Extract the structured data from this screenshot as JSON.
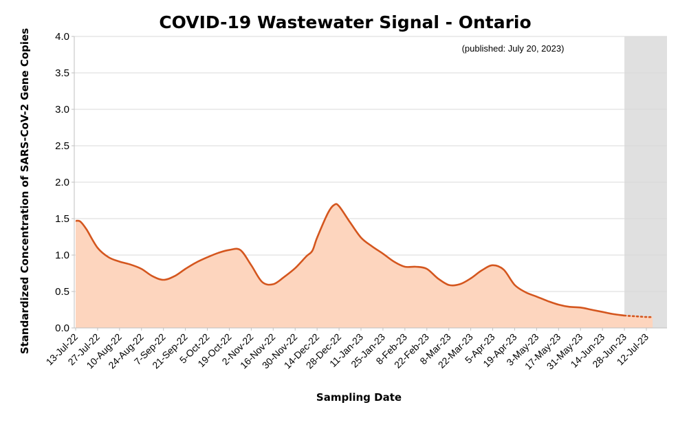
{
  "chart_data": {
    "type": "area",
    "title": "COVID-19 Wastewater Signal - Ontario",
    "annotation": "(published: July 20, 2023)",
    "xlabel": "Sampling Date",
    "ylabel": "Standardized Concentration of SARS-CoV-2 Gene Copies",
    "ylim": [
      0,
      4.0
    ],
    "yticks": [
      "0.0",
      "0.5",
      "1.0",
      "1.5",
      "2.0",
      "2.5",
      "3.0",
      "3.5",
      "4.0"
    ],
    "xtick_labels": [
      "13-Jul-22",
      "27-Jul-22",
      "10-Aug-22",
      "24-Aug-22",
      "7-Sep-22",
      "21-Sep-22",
      "5-Oct-22",
      "19-Oct-22",
      "2-Nov-22",
      "16-Nov-22",
      "30-Nov-22",
      "14-Dec-22",
      "28-Dec-22",
      "11-Jan-23",
      "25-Jan-23",
      "8-Feb-23",
      "22-Feb-23",
      "8-Mar-23",
      "22-Mar-23",
      "5-Apr-23",
      "19-Apr-23",
      "3-May-23",
      "17-May-23",
      "31-May-23",
      "14-Jun-23",
      "28-Jun-23",
      "12-Jul-23"
    ],
    "grid": true,
    "legend": "none",
    "shaded_region": {
      "from": "28-Jun-23",
      "to": "19-Jul-23",
      "color": "#e0e0e0"
    },
    "series": [
      {
        "color": "#d4561e",
        "fill": "#fdd5be",
        "points": [
          {
            "x": "13-Jul-22",
            "y": 1.47
          },
          {
            "x": "16-Jul-22",
            "y": 1.46
          },
          {
            "x": "20-Jul-22",
            "y": 1.35
          },
          {
            "x": "27-Jul-22",
            "y": 1.1
          },
          {
            "x": "3-Aug-22",
            "y": 0.97
          },
          {
            "x": "10-Aug-22",
            "y": 0.91
          },
          {
            "x": "17-Aug-22",
            "y": 0.87
          },
          {
            "x": "24-Aug-22",
            "y": 0.81
          },
          {
            "x": "31-Aug-22",
            "y": 0.71
          },
          {
            "x": "7-Sep-22",
            "y": 0.66
          },
          {
            "x": "14-Sep-22",
            "y": 0.71
          },
          {
            "x": "21-Sep-22",
            "y": 0.81
          },
          {
            "x": "28-Sep-22",
            "y": 0.9
          },
          {
            "x": "5-Oct-22",
            "y": 0.97
          },
          {
            "x": "12-Oct-22",
            "y": 1.03
          },
          {
            "x": "19-Oct-22",
            "y": 1.07
          },
          {
            "x": "26-Oct-22",
            "y": 1.07
          },
          {
            "x": "2-Nov-22",
            "y": 0.86
          },
          {
            "x": "9-Nov-22",
            "y": 0.63
          },
          {
            "x": "16-Nov-22",
            "y": 0.6
          },
          {
            "x": "23-Nov-22",
            "y": 0.7
          },
          {
            "x": "30-Nov-22",
            "y": 0.82
          },
          {
            "x": "7-Dec-22",
            "y": 0.98
          },
          {
            "x": "11-Dec-22",
            "y": 1.06
          },
          {
            "x": "14-Dec-22",
            "y": 1.24
          },
          {
            "x": "21-Dec-22",
            "y": 1.58
          },
          {
            "x": "25-Dec-22",
            "y": 1.69
          },
          {
            "x": "28-Dec-22",
            "y": 1.67
          },
          {
            "x": "4-Jan-23",
            "y": 1.45
          },
          {
            "x": "11-Jan-23",
            "y": 1.24
          },
          {
            "x": "18-Jan-23",
            "y": 1.12
          },
          {
            "x": "25-Jan-23",
            "y": 1.02
          },
          {
            "x": "1-Feb-23",
            "y": 0.91
          },
          {
            "x": "8-Feb-23",
            "y": 0.84
          },
          {
            "x": "15-Feb-23",
            "y": 0.84
          },
          {
            "x": "22-Feb-23",
            "y": 0.81
          },
          {
            "x": "1-Mar-23",
            "y": 0.68
          },
          {
            "x": "8-Mar-23",
            "y": 0.59
          },
          {
            "x": "15-Mar-23",
            "y": 0.6
          },
          {
            "x": "22-Mar-23",
            "y": 0.68
          },
          {
            "x": "29-Mar-23",
            "y": 0.79
          },
          {
            "x": "5-Apr-23",
            "y": 0.86
          },
          {
            "x": "12-Apr-23",
            "y": 0.8
          },
          {
            "x": "19-Apr-23",
            "y": 0.59
          },
          {
            "x": "26-Apr-23",
            "y": 0.49
          },
          {
            "x": "3-May-23",
            "y": 0.43
          },
          {
            "x": "10-May-23",
            "y": 0.37
          },
          {
            "x": "17-May-23",
            "y": 0.32
          },
          {
            "x": "24-May-23",
            "y": 0.29
          },
          {
            "x": "31-May-23",
            "y": 0.28
          },
          {
            "x": "7-Jun-23",
            "y": 0.25
          },
          {
            "x": "14-Jun-23",
            "y": 0.22
          },
          {
            "x": "21-Jun-23",
            "y": 0.19
          },
          {
            "x": "28-Jun-23",
            "y": 0.17
          }
        ],
        "provisional_points": [
          {
            "x": "28-Jun-23",
            "y": 0.17
          },
          {
            "x": "5-Jul-23",
            "y": 0.16
          },
          {
            "x": "12-Jul-23",
            "y": 0.15
          },
          {
            "x": "16-Jul-23",
            "y": 0.15
          }
        ]
      }
    ]
  }
}
